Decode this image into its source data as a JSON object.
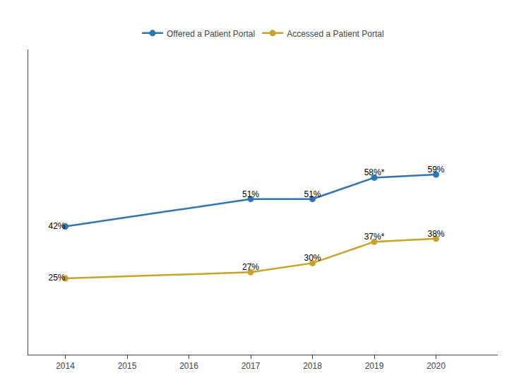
{
  "chart_data": {
    "type": "line",
    "x": [
      2014,
      2017,
      2018,
      2019,
      2020
    ],
    "series": [
      {
        "name": "Offered a Patient Portal",
        "color": "#2E75B6",
        "marker": "circle",
        "line_style": "solid",
        "values": [
          42,
          51,
          51,
          58,
          59
        ],
        "value_labels": [
          "42%",
          "51%",
          "51%",
          "58%*",
          "59%"
        ]
      },
      {
        "name": "Accessed a Patient Portal",
        "color": "#C9A227",
        "marker": "circle",
        "line_style": "solid",
        "values": [
          25,
          27,
          30,
          37,
          38
        ],
        "value_labels": [
          "25%",
          "27%",
          "30%",
          "37%*",
          "38%"
        ]
      }
    ],
    "xlim": [
      2013.4,
      2021.0
    ],
    "xticks": [
      2014,
      2015,
      2016,
      2017,
      2018,
      2019,
      2020
    ],
    "ylim": [
      0,
      100
    ],
    "grid": false,
    "legend": "top",
    "data_labels": true,
    "tick_labels": "x"
  }
}
